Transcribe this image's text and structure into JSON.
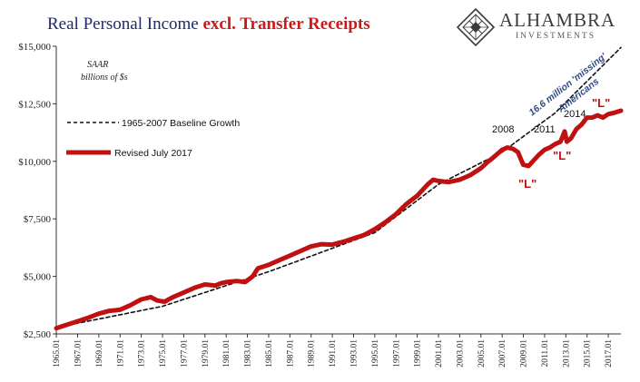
{
  "title": {
    "part1": "Real Personal Income ",
    "part2": "excl. Transfer Receipts",
    "color1": "#1f2a6b",
    "color2": "#d01818"
  },
  "logo": {
    "word": "ALHAMBRA",
    "sub": "INVESTMENTS",
    "icon": "diamond-lattice-icon",
    "color": "#3b3b3b"
  },
  "chart_data": {
    "type": "line",
    "units_note": [
      "SAAR",
      "billions of $s"
    ],
    "y_ticks": [
      "$2,500",
      "$5,000",
      "$7,500",
      "$10,000",
      "$12,500",
      "$15,000"
    ],
    "y_values": [
      2500,
      5000,
      7500,
      10000,
      12500,
      15000
    ],
    "ylim": [
      2500,
      15000
    ],
    "x_ticks": [
      "1965.01",
      "1967.01",
      "1969.01",
      "1971.01",
      "1973.01",
      "1975.01",
      "1977.01",
      "1979.01",
      "1981.01",
      "1983.01",
      "1985.01",
      "1987.01",
      "1989.01",
      "1991.01",
      "1993.01",
      "1995.01",
      "1997.01",
      "1999.01",
      "2001.01",
      "2003.01",
      "2005.01",
      "2007.01",
      "2009.01",
      "2011.01",
      "2013.01",
      "2015.01",
      "2017.01"
    ],
    "xlim": [
      1965.0,
      2018.2
    ],
    "grid": false,
    "legend_position": "upper-left",
    "series": [
      {
        "name": "1965-2007 Baseline Growth",
        "style": "dashed",
        "color": "#111111",
        "x": [
          1965.0,
          1975.0,
          1985.0,
          1995.0,
          2001.0,
          2007.0,
          2012.0,
          2018.2
        ],
        "y": [
          2780,
          3700,
          5200,
          6900,
          9000,
          10400,
          12100,
          14950
        ]
      },
      {
        "name": "Revised July 2017",
        "style": "solid",
        "color": "#c01010",
        "x": [
          1965.0,
          1966.0,
          1967.0,
          1968.0,
          1969.0,
          1970.0,
          1971.0,
          1972.0,
          1973.0,
          1973.9,
          1974.5,
          1975.2,
          1976.0,
          1977.0,
          1978.0,
          1979.0,
          1980.0,
          1980.5,
          1981.0,
          1982.0,
          1982.8,
          1983.5,
          1984.0,
          1985.0,
          1986.0,
          1987.0,
          1988.0,
          1989.0,
          1990.0,
          1991.0,
          1992.0,
          1993.0,
          1994.0,
          1995.0,
          1996.0,
          1997.0,
          1998.0,
          1999.0,
          2000.0,
          2000.5,
          2001.0,
          2001.5,
          2002.0,
          2003.0,
          2004.0,
          2005.0,
          2005.7,
          2006.0,
          2007.0,
          2007.5,
          2008.0,
          2008.5,
          2009.0,
          2009.5,
          2010.0,
          2010.5,
          2011.0,
          2011.5,
          2012.0,
          2012.5,
          2012.9,
          2013.1,
          2013.5,
          2014.0,
          2014.5,
          2015.0,
          2015.5,
          2016.0,
          2016.5,
          2017.0,
          2017.5,
          2018.2
        ],
        "y": [
          2750,
          2900,
          3050,
          3200,
          3380,
          3500,
          3550,
          3750,
          4000,
          4100,
          3950,
          3900,
          4100,
          4300,
          4500,
          4650,
          4600,
          4700,
          4750,
          4800,
          4750,
          5000,
          5350,
          5500,
          5700,
          5900,
          6100,
          6300,
          6400,
          6380,
          6500,
          6650,
          6800,
          7050,
          7350,
          7700,
          8150,
          8500,
          9000,
          9200,
          9150,
          9120,
          9100,
          9200,
          9400,
          9700,
          10000,
          10100,
          10500,
          10600,
          10550,
          10400,
          9850,
          9800,
          10050,
          10300,
          10500,
          10600,
          10750,
          10850,
          11300,
          10850,
          11000,
          11400,
          11600,
          11900,
          11900,
          12000,
          11900,
          12050,
          12100,
          12200
        ]
      }
    ],
    "annotations": {
      "y2008": "2008",
      "y2011": "2011",
      "y2014": "2014",
      "L1": "\"L\"",
      "L2": "\"L\"",
      "L3": "\"L\"",
      "missing1": "16.6 million 'missing'",
      "missing2": "Americans"
    }
  }
}
